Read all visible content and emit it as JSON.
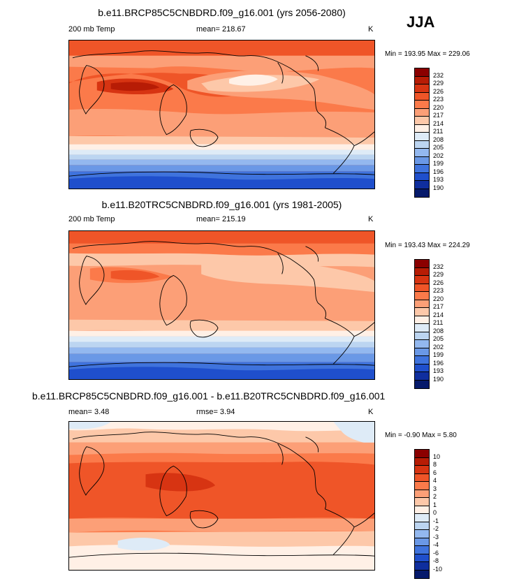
{
  "season": "JJA",
  "palette": {
    "p232": "#8b0000",
    "p229": "#b71c05",
    "p226": "#d73412",
    "p223": "#ef5528",
    "p220": "#fb7a4a",
    "p217": "#fc9f77",
    "p214": "#fdc8a9",
    "p211": "#fff0e6",
    "p208": "#deebf7",
    "p205": "#bcd5f1",
    "p202": "#93b8ef",
    "p199": "#6a98e6",
    "p196": "#3f73dd",
    "p193": "#1f4fcc",
    "p190": "#0f2e9e",
    "p187": "#061a6b",
    "coast": "#000000"
  },
  "panels": [
    {
      "title": "b.e11.BRCP85C5CNBDRD.f09_g16.001 (yrs 2056-2080)",
      "left_label": "200 mb Temp",
      "center_label": "mean= 218.67",
      "units": "K",
      "minmax": "Min = 193.95 Max = 229.06",
      "legend": [
        "232",
        "229",
        "226",
        "223",
        "220",
        "217",
        "214",
        "211",
        "208",
        "205",
        "202",
        "199",
        "196",
        "193",
        "190"
      ]
    },
    {
      "title": "b.e11.B20TRC5CNBDRD.f09_g16.001 (yrs 1981-2005)",
      "left_label": "200 mb Temp",
      "center_label": "mean= 215.19",
      "units": "K",
      "minmax": "Min = 193.43 Max = 224.29",
      "legend": [
        "232",
        "229",
        "226",
        "223",
        "220",
        "217",
        "214",
        "211",
        "208",
        "205",
        "202",
        "199",
        "196",
        "193",
        "190"
      ]
    },
    {
      "title": "b.e11.BRCP85C5CNBDRD.f09_g16.001 - b.e11.B20TRC5CNBDRD.f09_g16.001",
      "left_label": "mean=   3.48",
      "center_label": "rmse=   3.94",
      "units": "K",
      "minmax": "Min =  -0.90 Max =   5.80",
      "legend": [
        "10",
        "8",
        "6",
        "4",
        "3",
        "2",
        "1",
        "0",
        "-1",
        "-2",
        "-3",
        "-4",
        "-6",
        "-8",
        "-10"
      ]
    }
  ]
}
